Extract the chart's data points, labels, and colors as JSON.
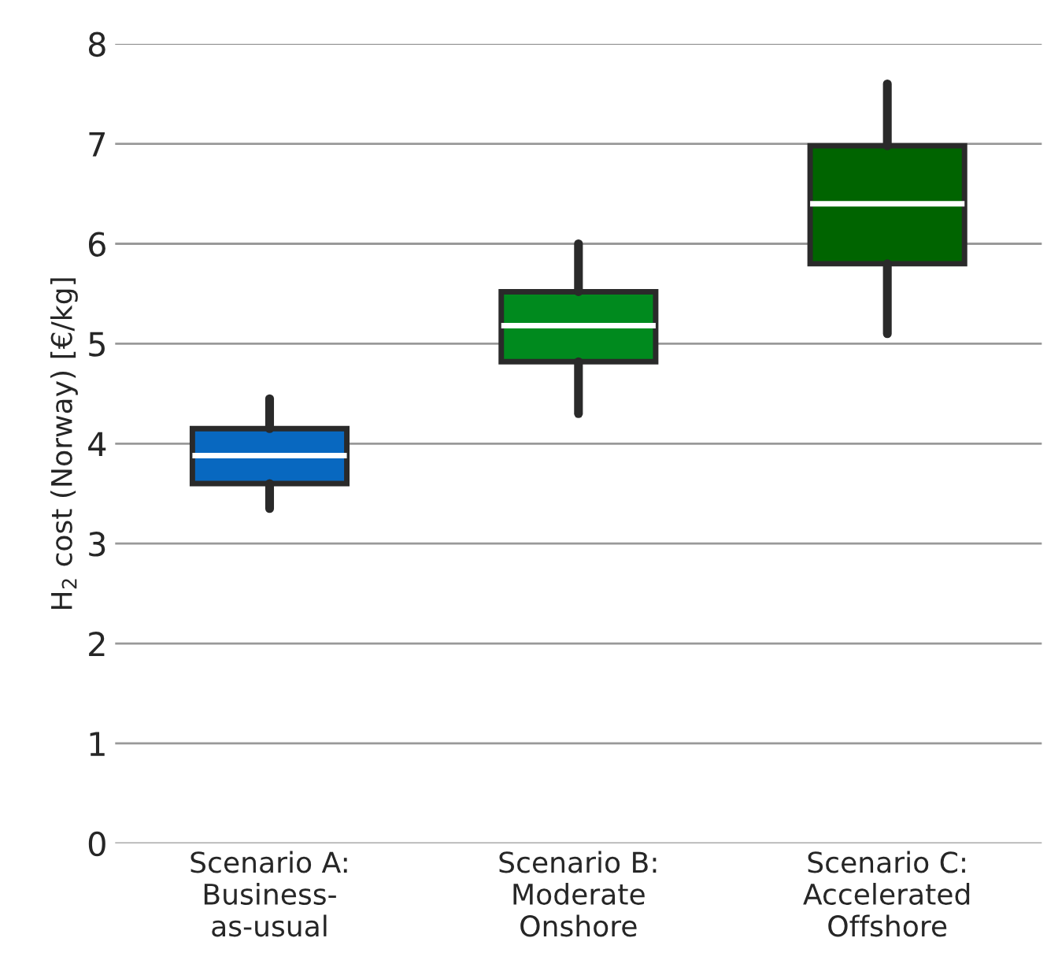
{
  "chart_data": {
    "type": "box",
    "ylabel": "H$_{2}$ cost (Norway) [€/kg]",
    "categories": [
      "Scenario A:\nBusiness-\nas-usual",
      "Scenario B:\nModerate\nOnshore",
      "Scenario C:\nAccelerated\nOffshore"
    ],
    "colors": [
      "#0868c0",
      "#008a1e",
      "#006400"
    ],
    "boxes": [
      {
        "low": 3.35,
        "q1": 3.6,
        "median": 3.88,
        "q3": 4.15,
        "high": 4.45
      },
      {
        "low": 4.3,
        "q1": 4.82,
        "median": 5.18,
        "q3": 5.52,
        "high": 6.0
      },
      {
        "low": 5.1,
        "q1": 5.8,
        "median": 6.4,
        "q3": 6.98,
        "high": 7.6
      }
    ],
    "ylim": [
      0,
      8
    ],
    "yticks": [
      0,
      1,
      2,
      3,
      4,
      5,
      6,
      7,
      8
    ],
    "grid": "y"
  }
}
